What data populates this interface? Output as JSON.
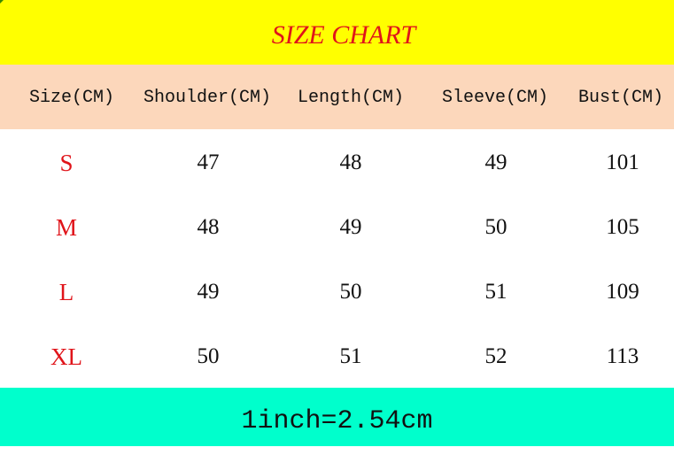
{
  "title": "SIZE CHART",
  "headers": [
    "Size(CM)",
    "Shoulder(CM)",
    "Length(CM)",
    "Sleeve(CM)",
    "Bust(CM)"
  ],
  "rows": [
    [
      "S",
      "47",
      "48",
      "49",
      "101"
    ],
    [
      "M",
      "48",
      "49",
      "50",
      "105"
    ],
    [
      "L",
      "49",
      "50",
      "51",
      "109"
    ],
    [
      "XL",
      "50",
      "51",
      "52",
      "113"
    ]
  ],
  "footer": "1inch=2.54cm",
  "colors": {
    "title_bg": "#ffff00",
    "title_text": "#e0141a",
    "header_bg": "#fcd7bb",
    "size_text": "#e0141a",
    "footer_bg": "#00ffcc"
  }
}
